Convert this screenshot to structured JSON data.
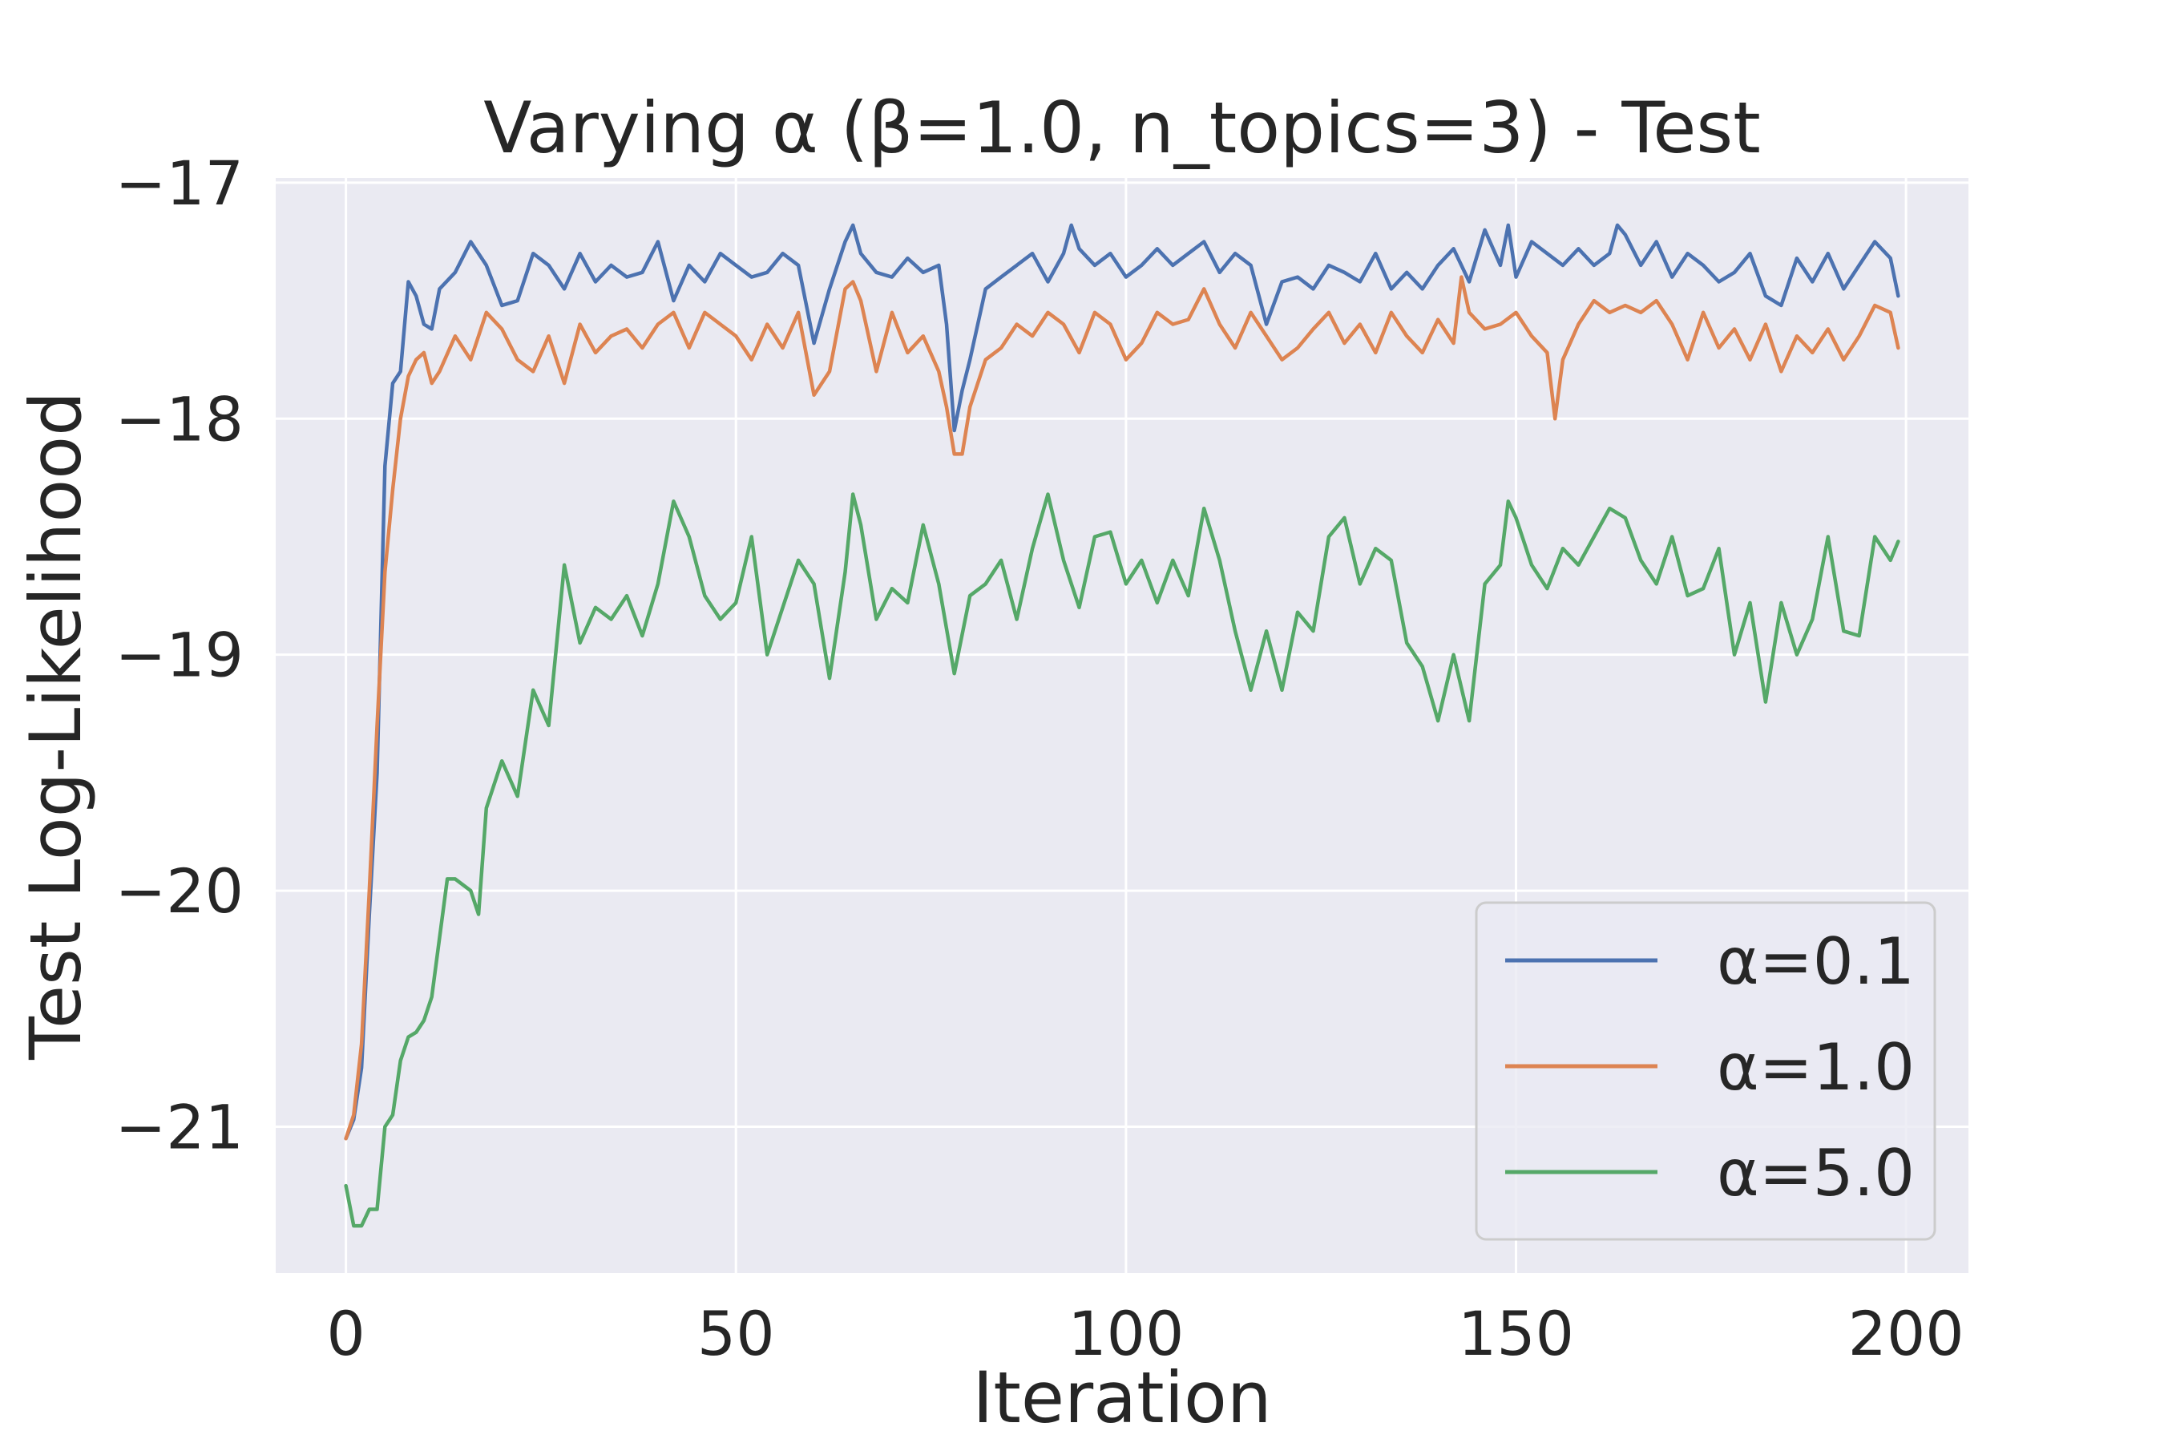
{
  "chart_data": {
    "type": "line",
    "title": "Varying α (β=1.0, n_topics=3) - Test",
    "xlabel": "Iteration",
    "ylabel": "Test Log-Likelihood",
    "xlim": [
      -9,
      208
    ],
    "ylim": [
      -21.62,
      -16.98
    ],
    "xticks": [
      0,
      50,
      100,
      150,
      200
    ],
    "yticks": [
      -21,
      -20,
      -19,
      -18,
      -17
    ],
    "xtick_labels": [
      "0",
      "50",
      "100",
      "150",
      "200"
    ],
    "ytick_labels": [
      "−21",
      "−20",
      "−19",
      "−18",
      "−17"
    ],
    "grid": true,
    "background": "#eaeaf2",
    "legend_position": "lower right",
    "series": [
      {
        "name": "α=0.1",
        "color": "#4c72b0",
        "x": [
          0,
          1,
          2,
          3,
          4,
          5,
          6,
          7,
          8,
          9,
          10,
          11,
          12,
          14,
          16,
          18,
          20,
          22,
          24,
          26,
          28,
          30,
          32,
          34,
          36,
          38,
          40,
          42,
          44,
          46,
          48,
          50,
          52,
          54,
          56,
          58,
          60,
          62,
          64,
          65,
          66,
          68,
          70,
          72,
          74,
          76,
          77,
          78,
          79,
          80,
          82,
          84,
          86,
          88,
          90,
          92,
          93,
          94,
          96,
          98,
          100,
          102,
          104,
          106,
          108,
          110,
          112,
          114,
          116,
          118,
          120,
          122,
          124,
          126,
          128,
          130,
          132,
          134,
          136,
          138,
          140,
          142,
          144,
          146,
          148,
          149,
          150,
          152,
          154,
          156,
          158,
          160,
          162,
          163,
          164,
          166,
          168,
          170,
          172,
          174,
          176,
          178,
          180,
          182,
          184,
          186,
          188,
          190,
          192,
          194,
          196,
          198,
          199
        ],
        "y": [
          -21.05,
          -20.97,
          -20.75,
          -20.1,
          -19.5,
          -18.2,
          -17.85,
          -17.8,
          -17.42,
          -17.48,
          -17.6,
          -17.62,
          -17.45,
          -17.38,
          -17.25,
          -17.35,
          -17.52,
          -17.5,
          -17.3,
          -17.35,
          -17.45,
          -17.3,
          -17.42,
          -17.35,
          -17.4,
          -17.38,
          -17.25,
          -17.5,
          -17.35,
          -17.42,
          -17.3,
          -17.35,
          -17.4,
          -17.38,
          -17.3,
          -17.35,
          -17.68,
          -17.45,
          -17.25,
          -17.18,
          -17.3,
          -17.38,
          -17.4,
          -17.32,
          -17.38,
          -17.35,
          -17.6,
          -18.05,
          -17.88,
          -17.75,
          -17.45,
          -17.4,
          -17.35,
          -17.3,
          -17.42,
          -17.3,
          -17.18,
          -17.28,
          -17.35,
          -17.3,
          -17.4,
          -17.35,
          -17.28,
          -17.35,
          -17.3,
          -17.25,
          -17.38,
          -17.3,
          -17.35,
          -17.6,
          -17.42,
          -17.4,
          -17.45,
          -17.35,
          -17.38,
          -17.42,
          -17.3,
          -17.45,
          -17.38,
          -17.45,
          -17.35,
          -17.28,
          -17.42,
          -17.2,
          -17.35,
          -17.18,
          -17.4,
          -17.25,
          -17.3,
          -17.35,
          -17.28,
          -17.35,
          -17.3,
          -17.18,
          -17.22,
          -17.35,
          -17.25,
          -17.4,
          -17.3,
          -17.35,
          -17.42,
          -17.38,
          -17.3,
          -17.48,
          -17.52,
          -17.32,
          -17.42,
          -17.3,
          -17.45,
          -17.35,
          -17.25,
          -17.32,
          -17.48
        ]
      },
      {
        "name": "α=1.0",
        "color": "#dd8452",
        "x": [
          0,
          1,
          2,
          3,
          4,
          5,
          6,
          7,
          8,
          9,
          10,
          11,
          12,
          14,
          16,
          18,
          20,
          22,
          24,
          26,
          28,
          30,
          32,
          34,
          36,
          38,
          40,
          42,
          44,
          46,
          48,
          50,
          52,
          54,
          56,
          58,
          60,
          62,
          64,
          65,
          66,
          68,
          70,
          72,
          74,
          76,
          77,
          78,
          79,
          80,
          82,
          84,
          86,
          88,
          90,
          92,
          94,
          96,
          98,
          100,
          102,
          104,
          106,
          108,
          110,
          112,
          114,
          116,
          118,
          120,
          122,
          124,
          126,
          128,
          130,
          132,
          134,
          136,
          138,
          140,
          142,
          143,
          144,
          146,
          148,
          150,
          152,
          154,
          155,
          156,
          158,
          160,
          162,
          164,
          166,
          168,
          170,
          172,
          174,
          176,
          178,
          180,
          182,
          184,
          186,
          188,
          190,
          192,
          194,
          196,
          198,
          199
        ],
        "y": [
          -21.05,
          -20.95,
          -20.65,
          -20.0,
          -19.3,
          -18.65,
          -18.3,
          -18.0,
          -17.82,
          -17.75,
          -17.72,
          -17.85,
          -17.8,
          -17.65,
          -17.75,
          -17.55,
          -17.62,
          -17.75,
          -17.8,
          -17.65,
          -17.85,
          -17.6,
          -17.72,
          -17.65,
          -17.62,
          -17.7,
          -17.6,
          -17.55,
          -17.7,
          -17.55,
          -17.6,
          -17.65,
          -17.75,
          -17.6,
          -17.7,
          -17.55,
          -17.9,
          -17.8,
          -17.45,
          -17.42,
          -17.5,
          -17.8,
          -17.55,
          -17.72,
          -17.65,
          -17.8,
          -17.95,
          -18.15,
          -18.15,
          -17.95,
          -17.75,
          -17.7,
          -17.6,
          -17.65,
          -17.55,
          -17.6,
          -17.72,
          -17.55,
          -17.6,
          -17.75,
          -17.68,
          -17.55,
          -17.6,
          -17.58,
          -17.45,
          -17.6,
          -17.7,
          -17.55,
          -17.65,
          -17.75,
          -17.7,
          -17.62,
          -17.55,
          -17.68,
          -17.6,
          -17.72,
          -17.55,
          -17.65,
          -17.72,
          -17.58,
          -17.68,
          -17.4,
          -17.55,
          -17.62,
          -17.6,
          -17.55,
          -17.65,
          -17.72,
          -18.0,
          -17.75,
          -17.6,
          -17.5,
          -17.55,
          -17.52,
          -17.55,
          -17.5,
          -17.6,
          -17.75,
          -17.55,
          -17.7,
          -17.62,
          -17.75,
          -17.6,
          -17.8,
          -17.65,
          -17.72,
          -17.62,
          -17.75,
          -17.65,
          -17.52,
          -17.55,
          -17.7
        ]
      },
      {
        "name": "α=5.0",
        "color": "#55a868",
        "x": [
          0,
          1,
          2,
          3,
          4,
          5,
          6,
          7,
          8,
          9,
          10,
          11,
          12,
          13,
          14,
          16,
          17,
          18,
          20,
          22,
          24,
          26,
          28,
          30,
          32,
          34,
          36,
          38,
          40,
          42,
          44,
          46,
          48,
          50,
          52,
          54,
          56,
          58,
          60,
          62,
          64,
          65,
          66,
          68,
          70,
          72,
          74,
          76,
          78,
          80,
          82,
          84,
          86,
          88,
          90,
          92,
          94,
          96,
          98,
          100,
          102,
          104,
          106,
          108,
          110,
          112,
          114,
          116,
          118,
          120,
          122,
          124,
          126,
          128,
          130,
          132,
          134,
          136,
          138,
          140,
          142,
          144,
          146,
          148,
          149,
          150,
          152,
          154,
          156,
          158,
          160,
          162,
          164,
          166,
          168,
          170,
          172,
          174,
          176,
          178,
          180,
          182,
          184,
          186,
          188,
          190,
          192,
          194,
          196,
          198,
          199
        ],
        "y": [
          -21.25,
          -21.42,
          -21.42,
          -21.35,
          -21.35,
          -21.0,
          -20.95,
          -20.72,
          -20.62,
          -20.6,
          -20.55,
          -20.45,
          -20.2,
          -19.95,
          -19.95,
          -20.0,
          -20.1,
          -19.65,
          -19.45,
          -19.6,
          -19.15,
          -19.3,
          -18.62,
          -18.95,
          -18.8,
          -18.85,
          -18.75,
          -18.92,
          -18.7,
          -18.35,
          -18.5,
          -18.75,
          -18.85,
          -18.78,
          -18.5,
          -19.0,
          -18.8,
          -18.6,
          -18.7,
          -19.1,
          -18.65,
          -18.32,
          -18.45,
          -18.85,
          -18.72,
          -18.78,
          -18.45,
          -18.7,
          -19.08,
          -18.75,
          -18.7,
          -18.6,
          -18.85,
          -18.55,
          -18.32,
          -18.6,
          -18.8,
          -18.5,
          -18.48,
          -18.7,
          -18.6,
          -18.78,
          -18.6,
          -18.75,
          -18.38,
          -18.6,
          -18.9,
          -19.15,
          -18.9,
          -19.15,
          -18.82,
          -18.9,
          -18.5,
          -18.42,
          -18.7,
          -18.55,
          -18.6,
          -18.95,
          -19.05,
          -19.28,
          -19.0,
          -19.28,
          -18.7,
          -18.62,
          -18.35,
          -18.42,
          -18.62,
          -18.72,
          -18.55,
          -18.62,
          -18.5,
          -18.38,
          -18.42,
          -18.6,
          -18.7,
          -18.5,
          -18.75,
          -18.72,
          -18.55,
          -19.0,
          -18.78,
          -19.2,
          -18.78,
          -19.0,
          -18.85,
          -18.5,
          -18.9,
          -18.92,
          -18.5,
          -18.6,
          -18.52
        ]
      }
    ]
  }
}
